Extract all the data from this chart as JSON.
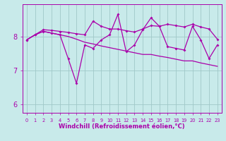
{
  "xlabel": "Windchill (Refroidissement éolien,°C)",
  "x": [
    0,
    1,
    2,
    3,
    4,
    5,
    6,
    7,
    8,
    9,
    10,
    11,
    12,
    13,
    14,
    15,
    16,
    17,
    18,
    19,
    20,
    21,
    22,
    23
  ],
  "line_main": [
    7.9,
    8.05,
    8.15,
    8.1,
    8.05,
    7.35,
    6.62,
    7.75,
    7.65,
    7.9,
    8.05,
    8.65,
    7.55,
    7.75,
    8.2,
    8.55,
    8.3,
    7.7,
    7.65,
    7.6,
    8.3,
    7.9,
    7.35,
    7.75
  ],
  "line_upper": [
    7.9,
    8.05,
    8.2,
    8.18,
    8.15,
    8.12,
    8.08,
    8.05,
    8.45,
    8.3,
    8.22,
    8.22,
    8.17,
    8.13,
    8.22,
    8.32,
    8.3,
    8.36,
    8.32,
    8.28,
    8.36,
    8.28,
    8.22,
    7.92
  ],
  "line_lower": [
    7.9,
    8.05,
    8.15,
    8.1,
    8.05,
    8.0,
    7.92,
    7.83,
    7.78,
    7.72,
    7.67,
    7.62,
    7.57,
    7.52,
    7.47,
    7.47,
    7.42,
    7.38,
    7.33,
    7.28,
    7.28,
    7.22,
    7.17,
    7.12
  ],
  "bg_color": "#c8eaea",
  "grid_color": "#a0c8c8",
  "line_color": "#aa00aa",
  "ylim": [
    5.75,
    8.95
  ],
  "yticks": [
    6,
    7,
    8
  ],
  "xlim": [
    -0.5,
    23.5
  ]
}
